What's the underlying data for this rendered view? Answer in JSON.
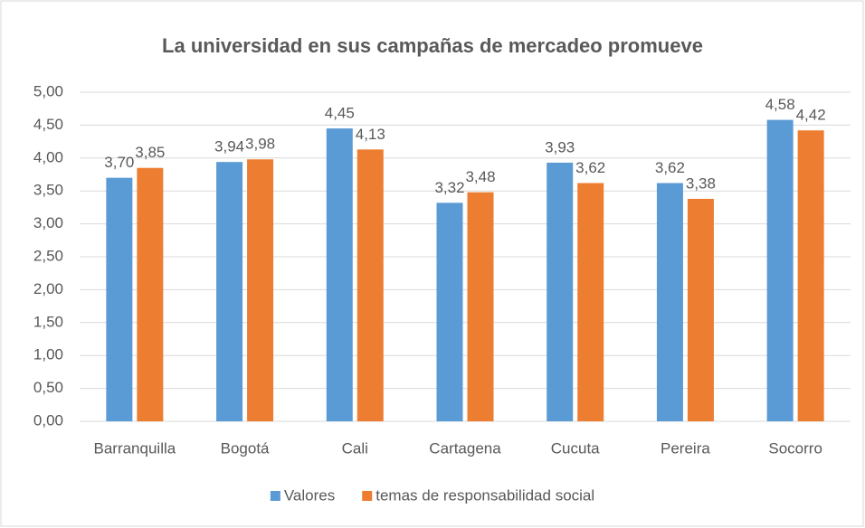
{
  "chart_data": {
    "type": "bar",
    "title": "La universidad en sus campañas de mercadeo promueve",
    "categories": [
      "Barranquilla",
      "Bogotá",
      "Cali",
      "Cartagena",
      "Cucuta",
      "Pereira",
      "Socorro"
    ],
    "series": [
      {
        "name": "Valores",
        "color": "#5b9bd5",
        "values": [
          3.7,
          3.94,
          4.45,
          3.32,
          3.93,
          3.62,
          4.58
        ],
        "value_labels": [
          "3,70",
          "3,94",
          "4,45",
          "3,32",
          "3,93",
          "3,62",
          "4,58"
        ]
      },
      {
        "name": "temas de responsabilidad social",
        "color": "#ed7d31",
        "values": [
          3.85,
          3.98,
          4.13,
          3.48,
          3.62,
          3.38,
          4.42
        ],
        "value_labels": [
          "3,85",
          "3,98",
          "4,13",
          "3,48",
          "3,62",
          "3,38",
          "4,42"
        ]
      }
    ],
    "ylim": [
      0,
      5
    ],
    "yticks": [
      {
        "value": 0,
        "label": "0,00"
      },
      {
        "value": 0.5,
        "label": "0,50"
      },
      {
        "value": 1,
        "label": "1,00"
      },
      {
        "value": 1.5,
        "label": "1,50"
      },
      {
        "value": 2,
        "label": "2,00"
      },
      {
        "value": 2.5,
        "label": "2,50"
      },
      {
        "value": 3,
        "label": "3,00"
      },
      {
        "value": 3.5,
        "label": "3,50"
      },
      {
        "value": 4,
        "label": "4,00"
      },
      {
        "value": 4.5,
        "label": "4,50"
      },
      {
        "value": 5,
        "label": "5,00"
      }
    ],
    "grid": true,
    "legend": "bottom"
  }
}
